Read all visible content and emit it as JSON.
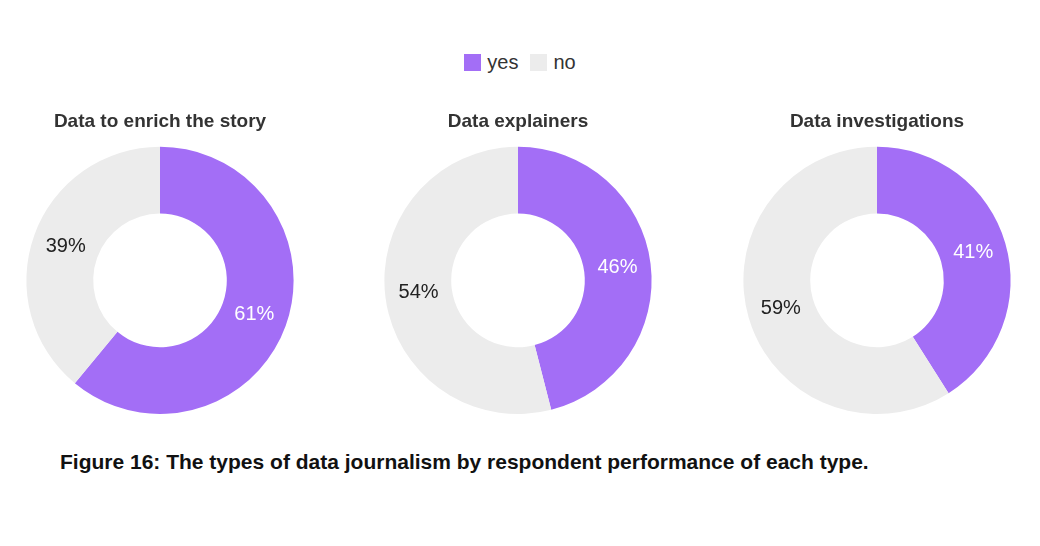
{
  "caption": "Figure 16: The types of data journalism by respondent performance of each type.",
  "chart_data": [
    {
      "type": "doughnut",
      "title": "Data to enrich the story",
      "categories": [
        "yes",
        "no"
      ],
      "values": [
        61,
        39
      ],
      "value_labels": [
        "61%",
        "39%"
      ],
      "colors": [
        "#a36ef6",
        "#ececec"
      ],
      "data_labels": true,
      "legend": "top"
    },
    {
      "type": "doughnut",
      "title": "Data explainers",
      "categories": [
        "yes",
        "no"
      ],
      "values": [
        46,
        54
      ],
      "value_labels": [
        "46%",
        "54%"
      ],
      "colors": [
        "#a36ef6",
        "#ececec"
      ],
      "data_labels": true,
      "legend": "top"
    },
    {
      "type": "doughnut",
      "title": "Data investigations",
      "categories": [
        "yes",
        "no"
      ],
      "values": [
        41,
        59
      ],
      "value_labels": [
        "41%",
        "59%"
      ],
      "colors": [
        "#a36ef6",
        "#ececec"
      ],
      "data_labels": true,
      "legend": "top"
    }
  ]
}
